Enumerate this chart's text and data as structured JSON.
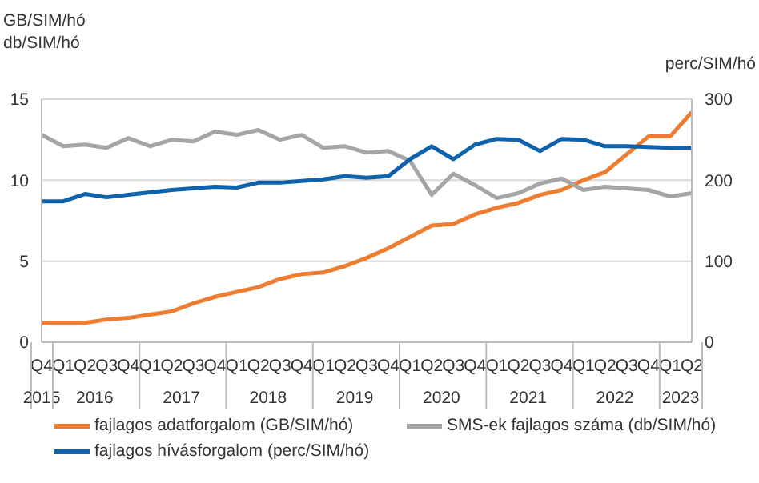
{
  "chart_data": {
    "type": "line",
    "ylabel": "GB/SIM/hó\ndb/SIM/hó",
    "y2label": "perc/SIM/hó",
    "categories": [
      "Q4",
      "Q1",
      "Q2",
      "Q3",
      "Q4",
      "Q1",
      "Q2",
      "Q3",
      "Q4",
      "Q1",
      "Q2",
      "Q3",
      "Q4",
      "Q1",
      "Q2",
      "Q3",
      "Q4",
      "Q1",
      "Q2",
      "Q3",
      "Q4",
      "Q1",
      "Q2",
      "Q3",
      "Q4",
      "Q1",
      "Q2",
      "Q3",
      "Q4",
      "Q1",
      "Q2"
    ],
    "annotations": [
      "2015",
      "2016",
      "2017",
      "2018",
      "2019",
      "2020",
      "2021",
      "2022",
      "2023"
    ],
    "series": [
      {
        "name": "fajlagos adatforgalom (GB/SIM/hó)",
        "color": "#ed7d31",
        "values": [
          1.2,
          1.2,
          1.2,
          1.4,
          1.5,
          1.7,
          1.9,
          2.4,
          2.8,
          3.1,
          3.4,
          3.9,
          4.2,
          4.3,
          4.7,
          5.2,
          5.8,
          6.5,
          7.2,
          7.3,
          7.9,
          8.3,
          8.6,
          9.1,
          9.4,
          10.0,
          10.5,
          11.6,
          12.7,
          12.7,
          14.2
        ]
      },
      {
        "name": "SMS-ek fajlagos száma (db/SIM/hó)",
        "color": "#a5a5a5",
        "values": [
          12.8,
          12.1,
          12.2,
          12.0,
          12.6,
          12.1,
          12.5,
          12.4,
          13.0,
          12.8,
          13.1,
          12.5,
          12.8,
          12.0,
          12.1,
          11.7,
          11.8,
          11.2,
          9.1,
          10.4,
          9.7,
          8.9,
          9.2,
          9.8,
          10.1,
          9.4,
          9.6,
          9.5,
          9.4,
          9.0,
          9.2
        ]
      },
      {
        "name": "fajlagos hívásforgalom (perc/SIM/hó)",
        "color": "#0f62ac",
        "axis": "y2",
        "values": [
          174,
          174,
          183,
          179,
          182,
          185,
          188,
          190,
          192,
          191,
          197,
          197,
          199,
          201,
          205,
          203,
          205,
          226,
          242,
          226,
          244,
          251,
          250,
          236,
          251,
          250,
          242,
          242,
          241,
          240,
          240
        ]
      }
    ],
    "ylim": [
      0,
      15
    ],
    "yticks": [
      0,
      5,
      10,
      15
    ],
    "y2lim": [
      0,
      300
    ],
    "y2ticks": [
      0,
      100,
      200,
      300
    ],
    "grid": "y",
    "legend": "bottom",
    "marker": "none",
    "line_style": "solid"
  }
}
